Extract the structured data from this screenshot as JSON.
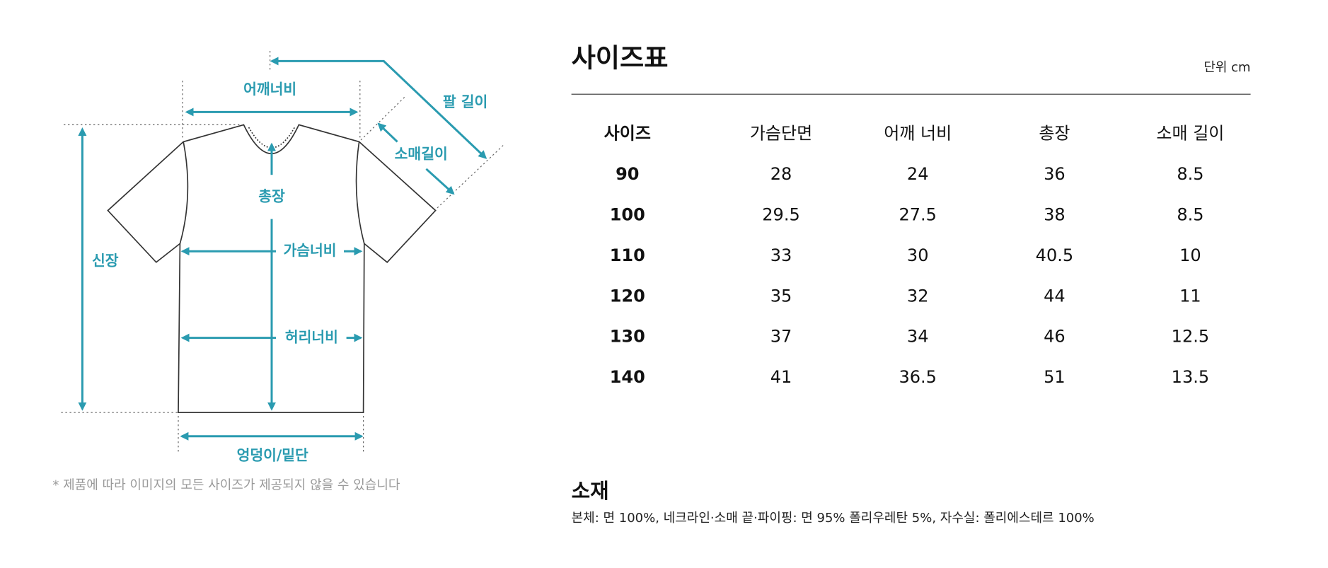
{
  "diagram": {
    "labels": [
      "어깨너비",
      "팔 길이",
      "소매길이",
      "신장",
      "총장",
      "가슴너비",
      "허리너비",
      "엉덩이/밑단"
    ],
    "note": "* 제품에 따라 이미지의 모든 사이즈가 제공되지 않을 수 있습니다"
  },
  "size_table": {
    "title": "사이즈표",
    "unit": "단위 cm",
    "header": [
      "사이즈",
      "가슴단면",
      "어깨 너비",
      "총장",
      "소매 길이"
    ],
    "rows": [
      [
        90,
        28,
        24,
        36,
        8.5
      ],
      [
        100,
        29.5,
        27.5,
        38,
        8.5
      ],
      [
        110,
        33,
        30,
        40.5,
        10
      ],
      [
        120,
        35,
        32,
        44,
        11
      ],
      [
        130,
        37,
        34,
        46,
        12.5
      ],
      [
        140,
        41,
        36.5,
        51,
        13.5
      ]
    ]
  },
  "material": {
    "title": "소재",
    "text": "본체: 면 100%, 네크라인·소매 끝·파이핑: 면 95% 폴리우레탄 5%, 자수실: 폴리에스테르 100%"
  }
}
